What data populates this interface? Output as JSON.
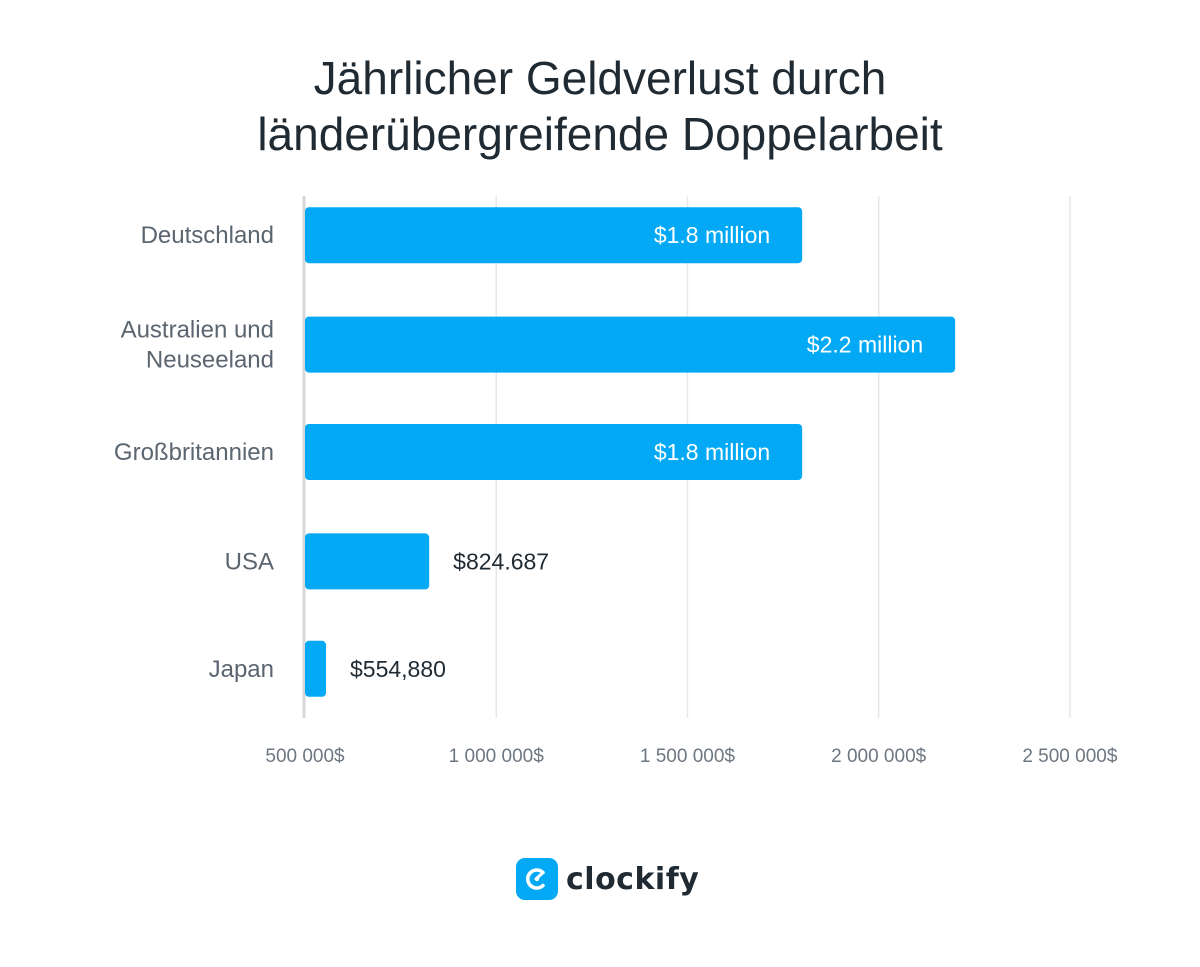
{
  "chart_data": {
    "type": "bar",
    "orientation": "horizontal",
    "title_lines": [
      "Jährlicher Geldverlust durch",
      "länderübergreifende Doppelarbeit"
    ],
    "categories": [
      [
        "Deutschland"
      ],
      [
        "Australien und",
        "Neuseeland"
      ],
      [
        "Großbritannien"
      ],
      [
        "USA"
      ],
      [
        "Japan"
      ]
    ],
    "values": [
      1800000,
      2200000,
      1800000,
      824687,
      554880
    ],
    "value_labels": [
      "$1.8 million",
      "$2.2 million",
      "$1.8 million",
      "$824.687",
      "$554,880"
    ],
    "xlim": [
      500000,
      2550000
    ],
    "x_ticks": [
      500000,
      1000000,
      1500000,
      2000000,
      2500000
    ],
    "x_tick_labels": [
      "500 000$",
      "1 000 000$",
      "1 500 000$",
      "2 000 000$",
      "2 500 000$"
    ],
    "grid": true,
    "colors": {
      "bar": "#03a9f4",
      "label_inside": "#ffffff",
      "label_outside": "#1f2a33",
      "category_text": "#5b6570",
      "tick_text": "#6e7781",
      "grid": "#e6e8ea",
      "axis": "#d5d8db"
    }
  },
  "brand": {
    "name": "clockify",
    "color": "#03a9f4"
  }
}
